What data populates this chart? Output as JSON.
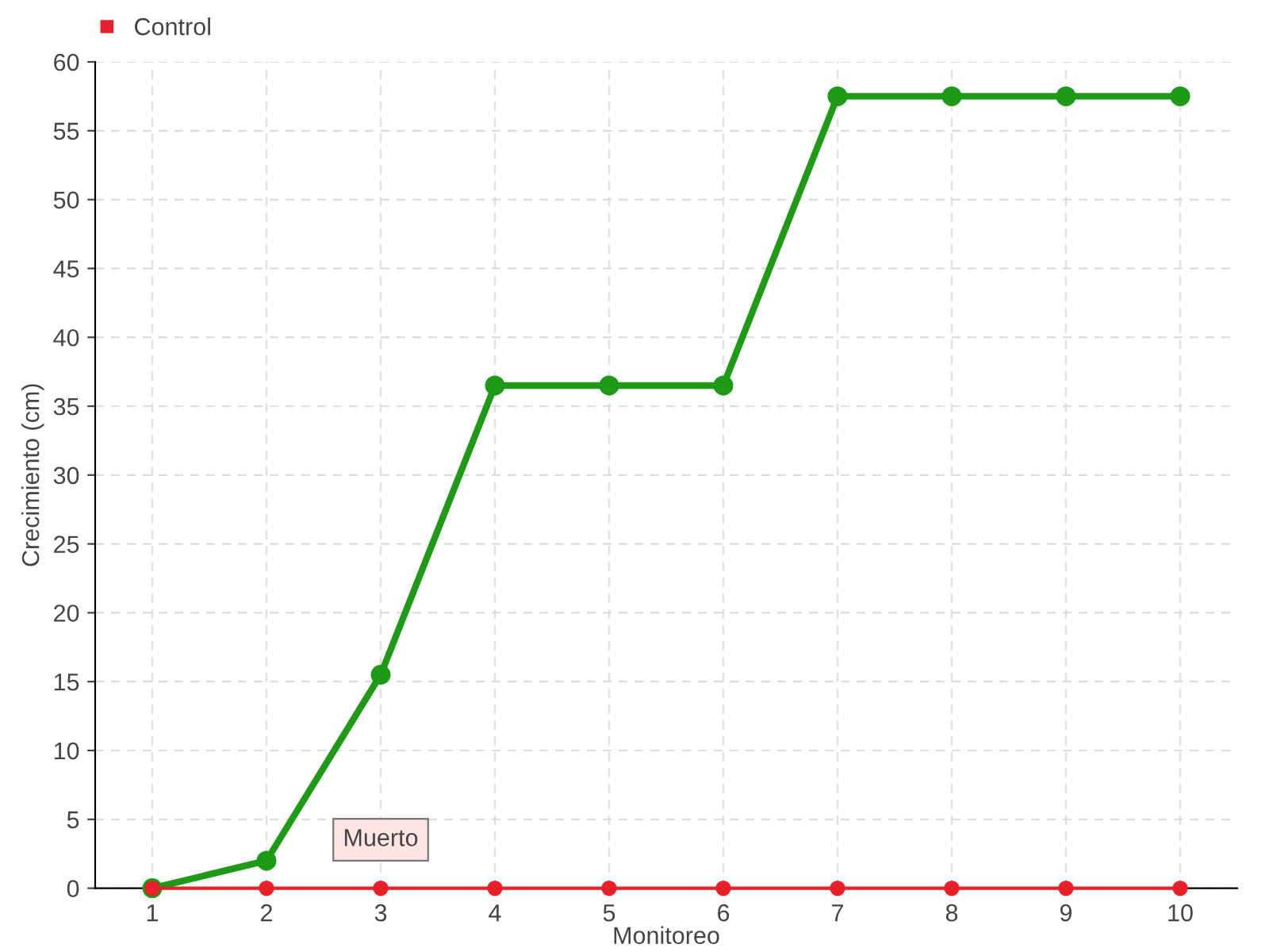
{
  "chart_data": {
    "type": "line",
    "xlabel": "Monitoreo",
    "ylabel": "Crecimiento (cm)",
    "categories": [
      "1",
      "2",
      "3",
      "4",
      "5",
      "6",
      "7",
      "8",
      "9",
      "10"
    ],
    "series": [
      {
        "color": "#1f9a16",
        "values": [
          0,
          2,
          15.5,
          36.5,
          36.5,
          36.5,
          57.5,
          57.5,
          57.5,
          57.5
        ]
      },
      {
        "name": "Control",
        "color": "#e8202a",
        "values": [
          0,
          0,
          0,
          0,
          0,
          0,
          0,
          0,
          0,
          0
        ]
      }
    ],
    "annotations": [
      {
        "text": "Muerto",
        "x": "3",
        "y": 0
      }
    ],
    "ylim": [
      0,
      60
    ],
    "yticks": [
      0,
      5,
      10,
      15,
      20,
      25,
      30,
      35,
      40,
      45,
      50,
      55,
      60
    ],
    "grid": true,
    "legend": "top left",
    "marker": "circle",
    "line_style": "solid"
  }
}
